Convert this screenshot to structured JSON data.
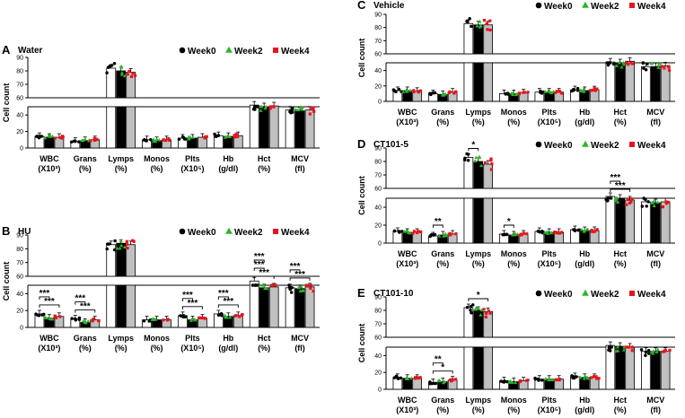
{
  "legend_labels": [
    "Week0",
    "Week2",
    "Week4"
  ],
  "colors": {
    "week0": "#000000",
    "week2": "#2bb52b",
    "week4": "#e8141b",
    "bar_fill_0": "#ffffff",
    "bar_fill_1": "#000000",
    "bar_fill_2": "#c0c0c0"
  },
  "chart_data": [
    {
      "panel": "A",
      "title": "Water",
      "type": "bar",
      "ylabel": "Cell count",
      "ylim_lower": [
        0,
        50
      ],
      "ylim_upper": [
        60,
        90
      ],
      "yticks_lower": [
        "0",
        "20",
        "40"
      ],
      "yticks_upper": [
        "60",
        "70",
        "80",
        "90"
      ],
      "categories": [
        [
          "WBC",
          "(X10³)"
        ],
        [
          "Grans",
          "(%)"
        ],
        [
          "Lymps",
          "(%)"
        ],
        [
          "Monos",
          "(%)"
        ],
        [
          "Plts",
          "(X10⁵)"
        ],
        [
          "Hb",
          "(g/dl)"
        ],
        [
          "Hct",
          "(%)"
        ],
        [
          "MCV",
          "(fl)"
        ]
      ],
      "series": [
        {
          "name": "Week0",
          "values": [
            14,
            8,
            82,
            10,
            12,
            15,
            52,
            46
          ]
        },
        {
          "name": "Week2",
          "values": [
            13,
            9,
            80,
            9,
            12,
            14,
            50,
            45
          ]
        },
        {
          "name": "Week4",
          "values": [
            13,
            10,
            79,
            10,
            13,
            15,
            51,
            46
          ]
        }
      ],
      "significance": []
    },
    {
      "panel": "B",
      "title": "HU",
      "type": "bar",
      "ylabel": "Cell count",
      "ylim_lower": [
        0,
        50
      ],
      "ylim_upper": [
        60,
        90
      ],
      "yticks_lower": [
        "0",
        "20",
        "40"
      ],
      "yticks_upper": [
        "60",
        "70",
        "80",
        "90"
      ],
      "categories": [
        [
          "WBC",
          "(X10³)"
        ],
        [
          "Grans",
          "(%)"
        ],
        [
          "Lymps",
          "(%)"
        ],
        [
          "Monos",
          "(%)"
        ],
        [
          "Plts",
          "(X10⁵)"
        ],
        [
          "Hb",
          "(g/dl)"
        ],
        [
          "Hct",
          "(%)"
        ],
        [
          "MCV",
          "(fl)"
        ]
      ],
      "series": [
        {
          "name": "Week0",
          "values": [
            16,
            10,
            83,
            9,
            14,
            16,
            55,
            47
          ]
        },
        {
          "name": "Week2",
          "values": [
            11,
            6,
            84,
            9,
            9,
            13,
            47,
            46
          ]
        },
        {
          "name": "Week4",
          "values": [
            13,
            9,
            83,
            9,
            11,
            14,
            48,
            48
          ]
        }
      ],
      "significance": [
        {
          "cat": 0,
          "from": 0,
          "to": 2,
          "level": 0,
          "label": "***"
        },
        {
          "cat": 0,
          "from": 0,
          "to": 1,
          "level": 1,
          "label": "***"
        },
        {
          "cat": 1,
          "from": 0,
          "to": 2,
          "level": 0,
          "label": "***"
        },
        {
          "cat": 1,
          "from": 0,
          "to": 1,
          "level": 1,
          "label": "***"
        },
        {
          "cat": 4,
          "from": 0,
          "to": 2,
          "level": 0,
          "label": "***"
        },
        {
          "cat": 4,
          "from": 0,
          "to": 1,
          "level": 1,
          "label": "***"
        },
        {
          "cat": 5,
          "from": 0,
          "to": 2,
          "level": 0,
          "label": "***"
        },
        {
          "cat": 5,
          "from": 0,
          "to": 1,
          "level": 1,
          "label": "***"
        },
        {
          "cat": 6,
          "from": 0,
          "to": 2,
          "level": 0,
          "label": "***"
        },
        {
          "cat": 6,
          "from": 0,
          "to": 1,
          "level": 1,
          "label": "***"
        },
        {
          "cat": 6,
          "from": 0,
          "to": 1,
          "level": 2,
          "label": "***"
        },
        {
          "cat": 7,
          "from": 0,
          "to": 2,
          "level": 0,
          "label": "***"
        },
        {
          "cat": 7,
          "from": 0,
          "to": 1,
          "level": 1,
          "label": "***"
        }
      ]
    },
    {
      "panel": "C",
      "title": "Vehicle",
      "type": "bar",
      "ylabel": "Cell count",
      "ylim_lower": [
        0,
        50
      ],
      "ylim_upper": [
        60,
        90
      ],
      "yticks_lower": [
        "0",
        "20",
        "40"
      ],
      "yticks_upper": [
        "60",
        "70",
        "80",
        "90"
      ],
      "categories": [
        [
          "WBC",
          "(X10³)"
        ],
        [
          "Grans",
          "(%)"
        ],
        [
          "Lymps",
          "(%)"
        ],
        [
          "Monos",
          "(%)"
        ],
        [
          "Plts",
          "(X10⁵)"
        ],
        [
          "Hb",
          "(g/dl)"
        ],
        [
          "Hct",
          "(%)"
        ],
        [
          "MCV",
          "(fl)"
        ]
      ],
      "series": [
        {
          "name": "Week0",
          "values": [
            14,
            10,
            83,
            10,
            12,
            15,
            51,
            45
          ]
        },
        {
          "name": "Week2",
          "values": [
            14,
            9,
            82,
            10,
            12,
            14,
            50,
            45
          ]
        },
        {
          "name": "Week4",
          "values": [
            13,
            12,
            82,
            11,
            12,
            15,
            52,
            46
          ]
        }
      ],
      "significance": []
    },
    {
      "panel": "D",
      "title": "CT101-5",
      "type": "bar",
      "ylabel": "Cell count",
      "ylim_lower": [
        0,
        50
      ],
      "ylim_upper": [
        60,
        90
      ],
      "yticks_lower": [
        "0",
        "20",
        "40"
      ],
      "yticks_upper": [
        "60",
        "70",
        "80",
        "90"
      ],
      "categories": [
        [
          "WBC",
          "(X10³)"
        ],
        [
          "Grans",
          "(%)"
        ],
        [
          "Lymps",
          "(%)"
        ],
        [
          "Monos",
          "(%)"
        ],
        [
          "Plts",
          "(X10⁵)"
        ],
        [
          "Hb",
          "(g/dl)"
        ],
        [
          "Hct",
          "(%)"
        ],
        [
          "MCV",
          "(fl)"
        ]
      ],
      "series": [
        {
          "name": "Week0",
          "values": [
            13,
            8,
            83,
            10,
            13,
            15,
            52,
            46
          ]
        },
        {
          "name": "Week2",
          "values": [
            12,
            9,
            80,
            9,
            12,
            14,
            50,
            45
          ]
        },
        {
          "name": "Week4",
          "values": [
            12,
            10,
            78,
            10,
            12,
            14,
            48,
            46
          ]
        }
      ],
      "significance": [
        {
          "cat": 1,
          "from": 0,
          "to": 1,
          "level": 0,
          "label": "**"
        },
        {
          "cat": 2,
          "from": 0,
          "to": 1,
          "level": 0,
          "label": "*"
        },
        {
          "cat": 3,
          "from": 0,
          "to": 1,
          "level": 0,
          "label": "*"
        },
        {
          "cat": 6,
          "from": 0,
          "to": 2,
          "level": 0,
          "label": "***"
        },
        {
          "cat": 6,
          "from": 0,
          "to": 1,
          "level": 1,
          "label": "***"
        }
      ]
    },
    {
      "panel": "E",
      "title": "CT101-10",
      "type": "bar",
      "ylabel": "Cell count",
      "ylim_lower": [
        0,
        50
      ],
      "ylim_upper": [
        60,
        90
      ],
      "yticks_lower": [
        "0",
        "20",
        "40"
      ],
      "yticks_upper": [
        "60",
        "70",
        "80",
        "90"
      ],
      "categories": [
        [
          "WBC",
          "(X10³)"
        ],
        [
          "Grans",
          "(%)"
        ],
        [
          "Lymps",
          "(%)"
        ],
        [
          "Monos",
          "(%)"
        ],
        [
          "Plts",
          "(X10⁵)"
        ],
        [
          "Hb",
          "(g/dl)"
        ],
        [
          "Hct",
          "(%)"
        ],
        [
          "MCV",
          "(fl)"
        ]
      ],
      "series": [
        {
          "name": "Week0",
          "values": [
            14,
            8,
            82,
            10,
            12,
            15,
            52,
            45
          ]
        },
        {
          "name": "Week2",
          "values": [
            13,
            9,
            80,
            9,
            12,
            14,
            51,
            45
          ]
        },
        {
          "name": "Week4",
          "values": [
            13,
            11,
            79,
            10,
            12,
            14,
            50,
            45
          ]
        }
      ],
      "significance": [
        {
          "cat": 1,
          "from": 0,
          "to": 2,
          "level": 0,
          "label": "*"
        },
        {
          "cat": 1,
          "from": 0,
          "to": 1,
          "level": 1,
          "label": "**"
        },
        {
          "cat": 2,
          "from": 0,
          "to": 2,
          "level": 0,
          "label": "*"
        }
      ]
    }
  ]
}
